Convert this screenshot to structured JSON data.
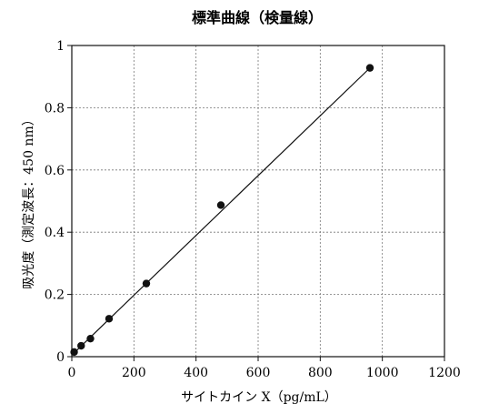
{
  "chart_data": {
    "type": "scatter",
    "title": "標準曲線（検量線）",
    "xlabel": "サイトカイン X（pg/mL）",
    "ylabel": "吸光度（測定波長：450 nm）",
    "xlim": [
      0,
      1200
    ],
    "ylim": [
      0,
      1
    ],
    "x_ticks": [
      "0",
      "200",
      "400",
      "600",
      "800",
      "1000",
      "1200"
    ],
    "y_ticks": [
      "0",
      "0.2",
      "0.4",
      "0.6",
      "0.8",
      "1"
    ],
    "grid": true,
    "series": [
      {
        "x": [
          7.5,
          30,
          60,
          120,
          240,
          480,
          960
        ],
        "y": [
          0.015,
          0.035,
          0.058,
          0.122,
          0.235,
          0.487,
          0.928
        ]
      }
    ],
    "fit_line": {
      "x": [
        0,
        960
      ],
      "y": [
        0.005,
        0.928
      ]
    },
    "colors": {
      "marker": "#111111",
      "line": "#111111",
      "grid": "#777777"
    }
  }
}
